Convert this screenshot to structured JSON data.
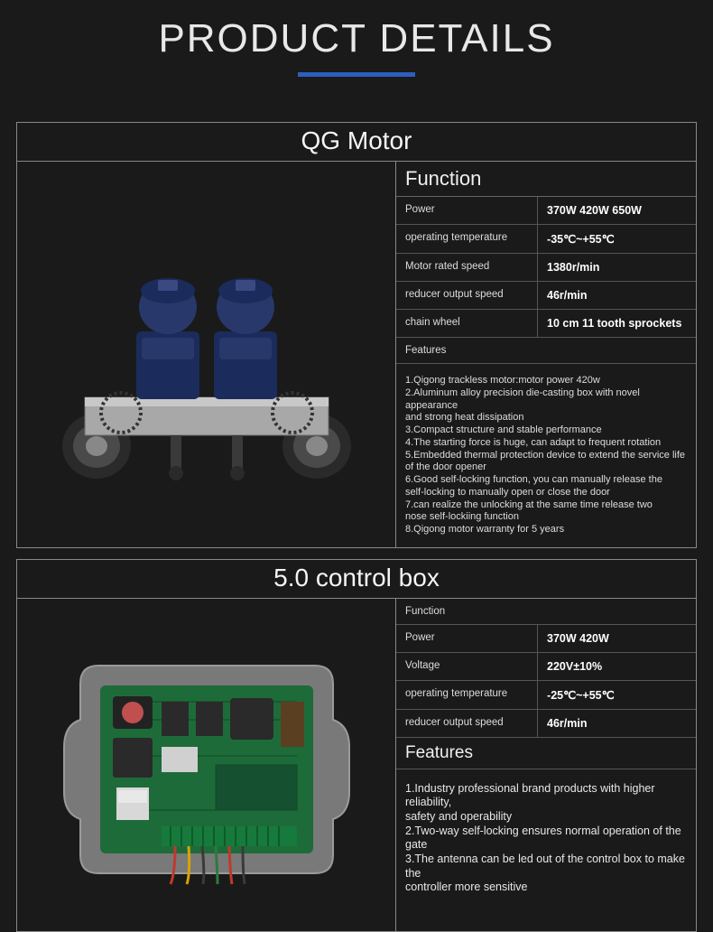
{
  "heading": "PRODUCT DETAILS",
  "accent_color": "#2b5fc0",
  "products": [
    {
      "title": "QG Motor",
      "function_label": "Function",
      "specs": [
        {
          "label": "Power",
          "value": "370W 420W 650W"
        },
        {
          "label": "operating temperature",
          "value": "-35℃~+55℃"
        },
        {
          "label": "Motor rated speed",
          "value": "1380r/min"
        },
        {
          "label": "reducer output speed",
          "value": "46r/min"
        },
        {
          "label": "chain wheel",
          "value": "10 cm 11 tooth sprockets"
        }
      ],
      "features_label": "Features",
      "features_lines": [
        "1.Qigong trackless motor:motor power 420w",
        "2.Aluminum alloy precision die-casting box with novel appearance",
        "and strong heat dissipation",
        "3.Compact structure and stable performance",
        "4.The starting force is huge, can adapt to frequent rotation",
        "5.Embedded thermal protection device to extend the service life",
        "of the door opener",
        "6.Good self-locking function, you can manually release the",
        "self-locking to manually open or close the door",
        "7.can realize the unlocking at the same time release two",
        "nose self-lockiing function",
        "8.Qigong motor warranty for 5 years"
      ],
      "illustration": {
        "type": "motor",
        "body_color": "#9a9a9a",
        "motor_color": "#1b2b5c",
        "motor_cap_color": "#28386b",
        "wheel_color": "#2a2a2a",
        "tread_color": "#4a4a4a",
        "sprocket_color": "#333333"
      }
    },
    {
      "title": "5.0 control box",
      "function_label": "Function",
      "specs": [
        {
          "label": "Power",
          "value": "370W 420W"
        },
        {
          "label": "Voltage",
          "value": "220V±10%"
        },
        {
          "label": "operating temperature",
          "value": "-25℃~+55℃"
        },
        {
          "label": "reducer output speed",
          "value": "46r/min"
        }
      ],
      "features_label": "Features",
      "features_lines": [
        "1.Industry professional brand products with higher reliability,",
        "safety and operability",
        "2.Two-way self-locking ensures normal operation of the gate",
        "3.The antenna can be led out of the control box to make the",
        " controller more sensitive"
      ],
      "illustration": {
        "type": "control_box",
        "case_color": "#b8b8b8",
        "board_color": "#1e6b3a",
        "trace_color": "#0e4a24",
        "component_colors": [
          "#222222",
          "#c05050",
          "#d0d0d0",
          "#5a4020"
        ],
        "wire_colors": [
          "#c0392b",
          "#d9a400",
          "#3a3a3a",
          "#2d7a3e"
        ]
      }
    }
  ]
}
